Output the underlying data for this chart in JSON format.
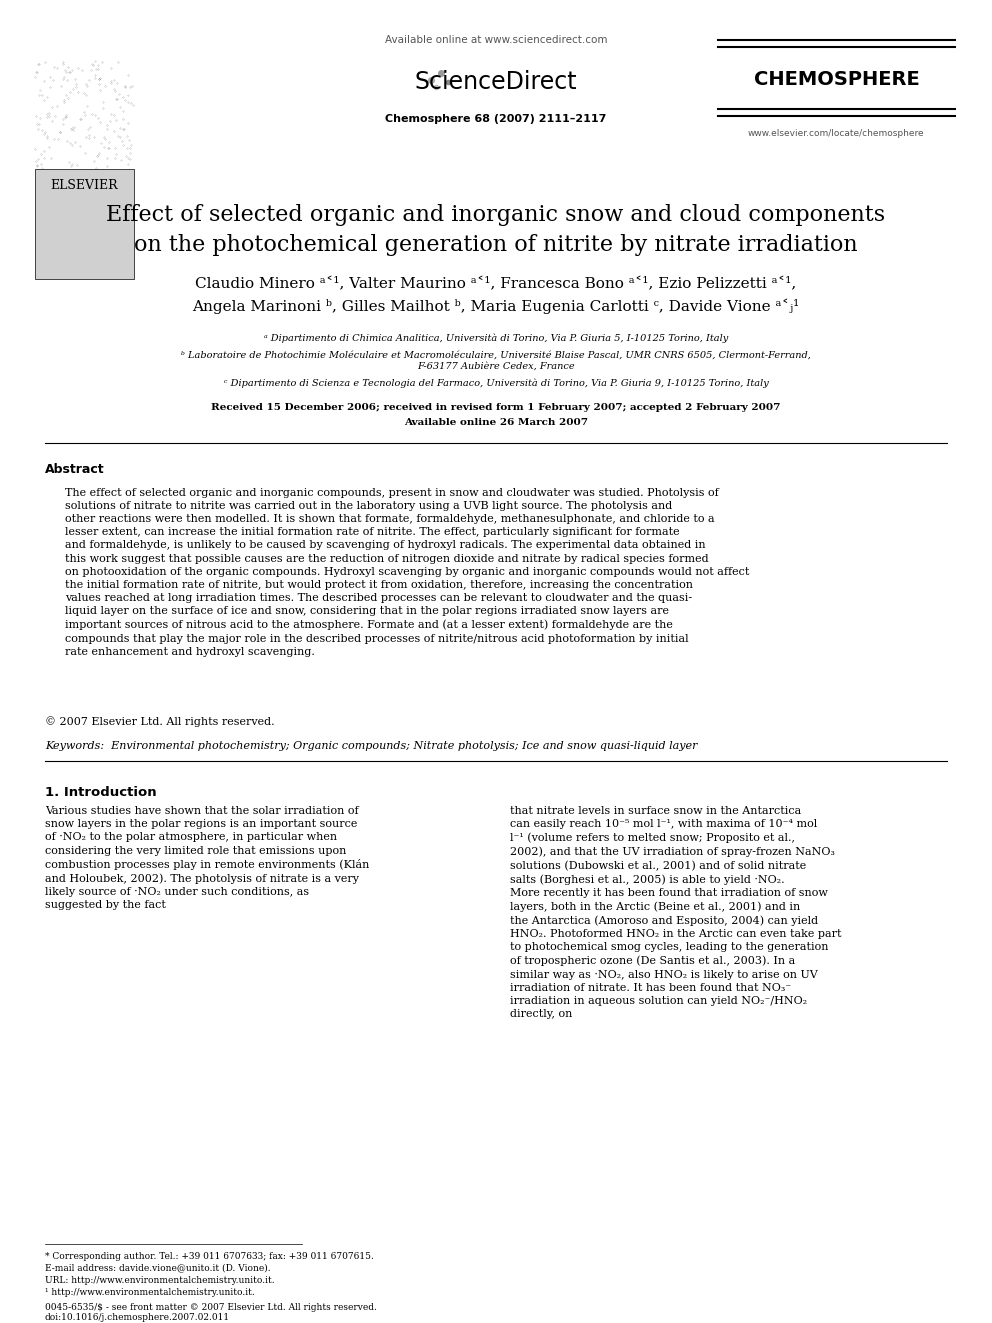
{
  "bg_color": "#ffffff",
  "title_line1": "Effect of selected organic and inorganic snow and cloud components",
  "title_line2": "on the photochemical generation of nitrite by nitrate irradiation",
  "authors_line1": "Claudio Minero ᵃ˂¹, Valter Maurino ᵃ˂¹, Francesca Bono ᵃ˂¹, Ezio Pelizzetti ᵃ˂¹,",
  "authors_line2": "Angela Marinoni ᵇ, Gilles Mailhot ᵇ, Maria Eugenia Carlotti ᶜ, Davide Vione ᵃ˂ⱼ¹",
  "affil_a": "ᵃ Dipartimento di Chimica Analitica, Università di Torino, Via P. Giuria 5, I-10125 Torino, Italy",
  "affil_b": "ᵇ Laboratoire de Photochimie Moléculaire et Macromoléculaire, Université Blaise Pascal, UMR CNRS 6505, Clermont-Ferrand,",
  "affil_b2": "F-63177 Aubière Cedex, France",
  "affil_c": "ᶜ Dipartimento di Scienza e Tecnologia del Farmaco, Università di Torino, Via P. Giuria 9, I-10125 Torino, Italy",
  "received": "Received 15 December 2006; received in revised form 1 February 2007; accepted 2 February 2007",
  "available": "Available online 26 March 2007",
  "journal_ref": "Chemosphere 68 (2007) 2111–2117",
  "available_online": "Available online at www.sciencedirect.com",
  "chemosphere": "CHEMOSPHERE",
  "elsevier": "ELSEVIER",
  "website": "www.elsevier.com/locate/chemosphere",
  "abstract_title": "Abstract",
  "abstract_text": "The effect of selected organic and inorganic compounds, present in snow and cloudwater was studied. Photolysis of solutions of nitrate to nitrite was carried out in the laboratory using a UVB light source. The photolysis and other reactions were then modelled. It is shown that formate, formaldehyde, methanesulphonate, and chloride to a lesser extent, can increase the initial formation rate of nitrite. The effect, particularly significant for formate and formaldehyde, is unlikely to be caused by scavenging of hydroxyl radicals. The experimental data obtained in this work suggest that possible causes are the reduction of nitrogen dioxide and nitrate by radical species formed on photooxidation of the organic compounds. Hydroxyl scavenging by organic and inorganic compounds would not affect the initial formation rate of nitrite, but would protect it from oxidation, therefore, increasing the concentration values reached at long irradiation times. The described processes can be relevant to cloudwater and the quasi-liquid layer on the surface of ice and snow, considering that in the polar regions irradiated snow layers are important sources of nitrous acid to the atmosphere. Formate and (at a lesser extent) formaldehyde are the compounds that play the major role in the described processes of nitrite/nitrous acid photoformation by initial rate enhancement and hydroxyl scavenging.",
  "copyright": "© 2007 Elsevier Ltd. All rights reserved.",
  "keywords_label": "Keywords:",
  "keywords_text": "Environmental photochemistry; Organic compounds; Nitrate photolysis; Ice and snow quasi-liquid layer",
  "section1_title": "1. Introduction",
  "intro_col1": "Various studies have shown that the solar irradiation of snow layers in the polar regions is an important source of ·NO₂ to the polar atmosphere, in particular when considering the very limited role that emissions upon combustion processes play in remote environments (Klán and Holoubek, 2002). The photolysis of nitrate is a very likely source of ·NO₂ under such conditions, as suggested by the fact",
  "intro_col2": "that nitrate levels in surface snow in the Antarctica can easily reach 10⁻⁵ mol l⁻¹, with maxima of 10⁻⁴ mol l⁻¹ (volume refers to melted snow; Proposito et al., 2002), and that the UV irradiation of spray-frozen NaNO₃ solutions (Dubowski et al., 2001) and of solid nitrate salts (Borghesi et al., 2005) is able to yield ·NO₂.\n    More recently it has been found that irradiation of snow layers, both in the Arctic (Beine et al., 2001) and in the Antarctica (Amoroso and Esposito, 2004) can yield HNO₂. Photoformed HNO₂ in the Arctic can even take part to photochemical smog cycles, leading to the generation of tropospheric ozone (De Santis et al., 2003). In a similar way as ·NO₂, also HNO₂ is likely to arise on UV irradiation of nitrate. It has been found that NO₃⁻ irradiation in aqueous solution can yield NO₂⁻/HNO₂ directly, on",
  "footnote_star": "* Corresponding author. Tel.: +39 011 6707633; fax: +39 011 6707615.",
  "footnote_email": "E-mail address: davide.vione@unito.it (D. Vione).",
  "footnote_url": "URL: http://www.environmentalchemistry.unito.it.",
  "footnote_1": "¹ http://www.environmentalchemistry.unito.it.",
  "issn": "0045-6535/$ - see front matter © 2007 Elsevier Ltd. All rights reserved.",
  "doi": "doi:10.1016/j.chemosphere.2007.02.011"
}
